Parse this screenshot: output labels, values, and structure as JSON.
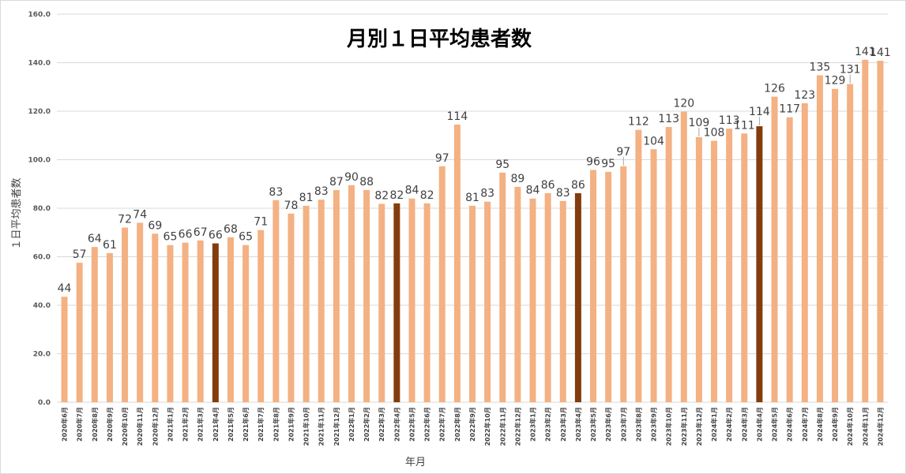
{
  "chart_data": {
    "type": "bar",
    "title": "月別１日平均患者数",
    "xlabel": "年月",
    "ylabel": "１日平均患者数",
    "ylim": [
      0,
      160
    ],
    "yticks": [
      "0.0",
      "20.0",
      "40.0",
      "60.0",
      "80.0",
      "100.0",
      "120.0",
      "140.0",
      "160.0"
    ],
    "grid": true,
    "legend": "none",
    "colors": {
      "bar": "#F4B183",
      "highlight": "#843C0C"
    },
    "highlight_categories": [
      "2021年4月",
      "2022年4月",
      "2023年4月",
      "2024年4月"
    ],
    "categories": [
      "2020年6月",
      "2020年7月",
      "2020年8月",
      "2020年9月",
      "2020年10月",
      "2020年11月",
      "2020年12月",
      "2021年1月",
      "2021年2月",
      "2021年3月",
      "2021年4月",
      "2021年5月",
      "2021年6月",
      "2021年7月",
      "2021年8月",
      "2021年9月",
      "2021年10月",
      "2021年11月",
      "2021年12月",
      "2022年1月",
      "2022年2月",
      "2022年3月",
      "2022年4月",
      "2022年5月",
      "2022年6月",
      "2022年7月",
      "2022年8月",
      "2022年9月",
      "2022年10月",
      "2022年11月",
      "2022年12月",
      "2023年1月",
      "2023年2月",
      "2023年3月",
      "2023年4月",
      "2023年5月",
      "2023年6月",
      "2023年7月",
      "2023年8月",
      "2023年9月",
      "2023年10月",
      "2023年11月",
      "2023年12月",
      "2024年1月",
      "2024年2月",
      "2024年3月",
      "2024年4月",
      "2024年5月",
      "2024年6月",
      "2024年7月",
      "2024年8月",
      "2024年9月",
      "2024年10月",
      "2024年11月",
      "2024年12月"
    ],
    "values": [
      43.5,
      57.5,
      64,
      61.5,
      72,
      74,
      69.5,
      64.8,
      65.8,
      66.7,
      65.5,
      68,
      64.8,
      71,
      83.3,
      77.8,
      81,
      83.5,
      87.5,
      89.5,
      87.5,
      81.8,
      82,
      84,
      82,
      97.3,
      114.5,
      81,
      82.7,
      94.7,
      88.8,
      84,
      86.2,
      83,
      86.2,
      95.8,
      95,
      97.3,
      112.3,
      104.3,
      113.5,
      119.8,
      109.3,
      107.8,
      112.8,
      110.8,
      113.8,
      126,
      117.5,
      123.3,
      134.8,
      129.2,
      131.2,
      141.2,
      140.8
    ],
    "data_labels": [
      "44",
      "57",
      "64",
      "61",
      "72",
      "74",
      "69",
      "65",
      "66",
      "67",
      "66",
      "68",
      "65",
      "71",
      "83",
      "78",
      "81",
      "83",
      "87",
      "90",
      "88",
      "82",
      "82",
      "84",
      "82",
      "97",
      "114",
      "81",
      "83",
      "95",
      "89",
      "84",
      "86",
      "83",
      "86",
      "96",
      "95",
      "97",
      "112",
      "104",
      "113",
      "120",
      "109",
      "108",
      "113",
      "111",
      "114",
      "126",
      "117",
      "123",
      "135",
      "129",
      "131",
      "141",
      "141"
    ]
  }
}
